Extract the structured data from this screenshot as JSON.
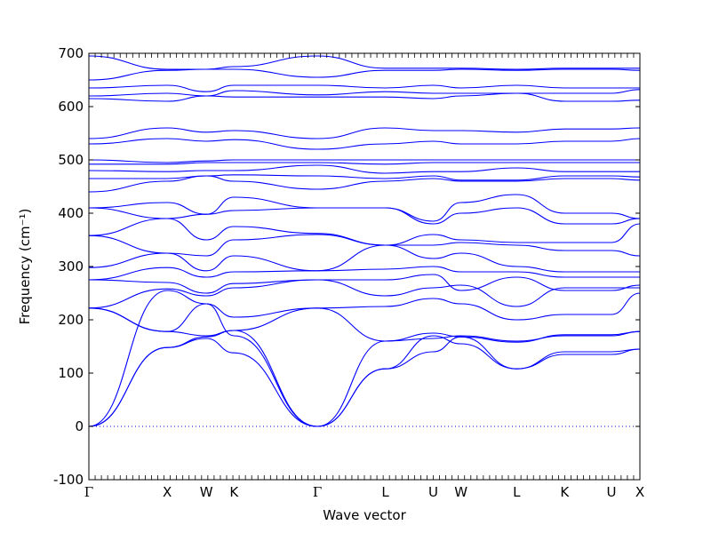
{
  "chart_data": {
    "type": "line",
    "xlabel": "Wave vector",
    "ylabel": "Frequency (cm⁻¹)",
    "ylim": [
      -100,
      700
    ],
    "yticks": [
      -100,
      0,
      100,
      200,
      300,
      400,
      500,
      600,
      700
    ],
    "xlim": [
      0,
      14.35
    ],
    "kpoints": [
      {
        "label": "Γ",
        "x": 0
      },
      {
        "label": "X",
        "x": 2.04
      },
      {
        "label": "W",
        "x": 3.06
      },
      {
        "label": "K",
        "x": 3.78
      },
      {
        "label": "Γ",
        "x": 5.95
      },
      {
        "label": "L",
        "x": 7.72
      },
      {
        "label": "U",
        "x": 8.97
      },
      {
        "label": "W",
        "x": 9.69
      },
      {
        "label": "L",
        "x": 11.14
      },
      {
        "label": "K",
        "x": 12.39
      },
      {
        "label": "U",
        "x": 13.61
      },
      {
        "label": "X",
        "x": 14.35
      }
    ],
    "grid": false,
    "zero_line": {
      "y": 0,
      "style": "dotted"
    },
    "line_color": "#0000ff",
    "series": [
      {
        "values": [
          0,
          148,
          165,
          138,
          0,
          108,
          140,
          168,
          108,
          135,
          135,
          145
        ]
      },
      {
        "values": [
          0,
          148,
          168,
          180,
          0,
          108,
          170,
          155,
          108,
          140,
          140,
          145
        ]
      },
      {
        "values": [
          0,
          255,
          230,
          170,
          0,
          160,
          175,
          168,
          158,
          172,
          172,
          178
        ]
      },
      {
        "values": [
          222,
          178,
          170,
          180,
          222,
          160,
          165,
          170,
          160,
          170,
          170,
          178
        ]
      },
      {
        "values": [
          222,
          178,
          230,
          205,
          222,
          225,
          240,
          230,
          200,
          210,
          210,
          250
        ]
      },
      {
        "values": [
          222,
          258,
          245,
          260,
          275,
          245,
          260,
          265,
          225,
          260,
          260,
          260
        ]
      },
      {
        "values": [
          275,
          270,
          250,
          268,
          275,
          275,
          285,
          255,
          280,
          255,
          255,
          265
        ]
      },
      {
        "values": [
          275,
          298,
          280,
          290,
          292,
          295,
          300,
          290,
          290,
          280,
          280,
          280
        ]
      },
      {
        "values": [
          298,
          325,
          292,
          320,
          292,
          340,
          315,
          325,
          300,
          290,
          290,
          290
        ]
      },
      {
        "values": [
          358,
          325,
          320,
          350,
          360,
          340,
          340,
          345,
          340,
          330,
          330,
          320
        ]
      },
      {
        "values": [
          358,
          390,
          350,
          375,
          362,
          340,
          360,
          350,
          345,
          345,
          345,
          380
        ]
      },
      {
        "values": [
          410,
          390,
          398,
          405,
          410,
          410,
          380,
          400,
          410,
          380,
          380,
          390
        ]
      },
      {
        "values": [
          410,
          420,
          398,
          430,
          410,
          410,
          385,
          420,
          435,
          400,
          400,
          390
        ]
      },
      {
        "values": [
          440,
          460,
          470,
          460,
          445,
          460,
          465,
          460,
          460,
          465,
          465,
          462
        ]
      },
      {
        "values": [
          465,
          465,
          470,
          472,
          470,
          465,
          470,
          462,
          462,
          470,
          470,
          468
        ]
      },
      {
        "values": [
          480,
          478,
          480,
          480,
          490,
          475,
          478,
          478,
          485,
          478,
          478,
          478
        ]
      },
      {
        "values": [
          492,
          492,
          495,
          495,
          495,
          492,
          495,
          495,
          495,
          495,
          495,
          495
        ]
      },
      {
        "values": [
          500,
          495,
          498,
          500,
          500,
          500,
          500,
          500,
          500,
          500,
          500,
          500
        ]
      },
      {
        "values": [
          530,
          540,
          535,
          538,
          520,
          530,
          535,
          530,
          530,
          535,
          535,
          540
        ]
      },
      {
        "values": [
          540,
          560,
          552,
          555,
          540,
          560,
          555,
          555,
          552,
          558,
          558,
          560
        ]
      },
      {
        "values": [
          615,
          610,
          620,
          618,
          618,
          618,
          615,
          620,
          625,
          610,
          610,
          612
        ]
      },
      {
        "values": [
          620,
          625,
          620,
          630,
          622,
          628,
          625,
          625,
          625,
          625,
          625,
          632
        ]
      },
      {
        "values": [
          635,
          640,
          628,
          640,
          640,
          635,
          640,
          635,
          640,
          635,
          635,
          635
        ]
      },
      {
        "values": [
          650,
          668,
          670,
          670,
          655,
          668,
          668,
          670,
          668,
          670,
          670,
          668
        ]
      },
      {
        "values": [
          695,
          670,
          670,
          675,
          695,
          672,
          672,
          672,
          670,
          672,
          672,
          672
        ]
      }
    ]
  }
}
